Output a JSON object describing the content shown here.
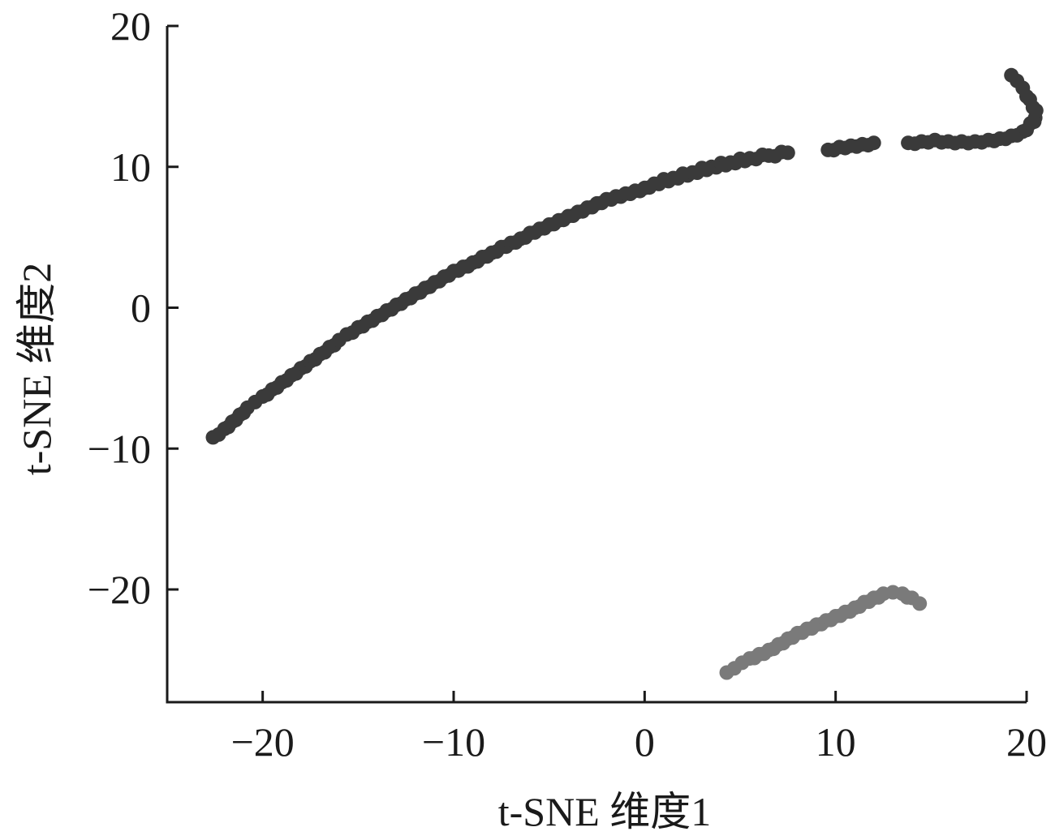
{
  "chart_data": {
    "type": "scatter",
    "title": "",
    "xlabel": "t-SNE 维度1",
    "ylabel": "t-SNE 维度2",
    "xlim": [
      -25,
      20
    ],
    "ylim": [
      -28,
      20
    ],
    "xticks": [
      -20,
      -10,
      0,
      10,
      20
    ],
    "yticks": [
      -20,
      -10,
      0,
      10,
      20
    ],
    "xtick_labels": [
      "−20",
      "−10",
      "0",
      "10",
      "20"
    ],
    "ytick_labels": [
      "−20",
      "−10",
      "0",
      "10",
      "20"
    ],
    "grid": false,
    "legend": "none",
    "series": [
      {
        "color": "#3a3a3a",
        "x": [
          -22.6,
          -22.3,
          -22.0,
          -21.6,
          -21.2,
          -20.8,
          -20.4,
          -20.0,
          -19.5,
          -19.0,
          -18.5,
          -18.0,
          -17.5,
          -17.0,
          -16.5,
          -16.0,
          -15.6,
          -15.0,
          -14.5,
          -14.0,
          -13.5,
          -13.0,
          -12.5,
          -12.0,
          -11.5,
          -11.0,
          -10.5,
          -10.0,
          -9.5,
          -9.0,
          -8.5,
          -8.0,
          -7.5,
          -7.0,
          -6.5,
          -6.0,
          -5.5,
          -5.0,
          -4.5,
          -4.0,
          -3.5,
          -3.0,
          -2.5,
          -2.0,
          -1.5,
          -1.0,
          -0.5,
          0.0,
          0.5,
          1.5,
          2.5,
          3.5,
          4.5,
          5.5,
          6.5,
          7.5,
          9.6,
          10.2,
          10.8,
          11.4,
          12.0,
          13.8,
          14.5,
          15.2,
          15.9,
          16.6,
          17.3,
          18.0,
          18.6,
          19.2,
          19.8,
          20.4,
          20.5,
          20.0,
          19.8,
          19.5,
          19.2
        ],
        "y": [
          -9.2,
          -9.0,
          -8.6,
          -8.1,
          -7.6,
          -7.1,
          -6.7,
          -6.3,
          -5.8,
          -5.3,
          -4.8,
          -4.3,
          -3.8,
          -3.3,
          -2.8,
          -2.3,
          -1.9,
          -1.4,
          -1.0,
          -0.6,
          -0.2,
          0.2,
          0.6,
          1.0,
          1.4,
          1.8,
          2.2,
          2.6,
          2.9,
          3.2,
          3.6,
          3.9,
          4.3,
          4.6,
          4.9,
          5.3,
          5.6,
          5.9,
          6.2,
          6.5,
          6.8,
          7.1,
          7.4,
          7.7,
          7.9,
          8.1,
          8.3,
          8.5,
          8.8,
          9.2,
          9.6,
          10.0,
          10.3,
          10.6,
          10.8,
          11.0,
          11.2,
          11.4,
          11.5,
          11.6,
          11.7,
          11.7,
          11.8,
          11.9,
          11.8,
          11.8,
          11.8,
          11.9,
          12.0,
          12.2,
          12.5,
          13.2,
          14.0,
          15.0,
          15.6,
          16.1,
          16.5
        ]
      },
      {
        "color": "#7a7a7a",
        "x": [
          4.3,
          4.7,
          5.1,
          5.5,
          6.0,
          6.5,
          7.0,
          7.5,
          8.0,
          8.5,
          9.0,
          9.5,
          10.0,
          10.5,
          11.0,
          11.5,
          12.0,
          12.5,
          13.0,
          13.5,
          14.0,
          14.4
        ],
        "y": [
          -25.9,
          -25.6,
          -25.2,
          -24.9,
          -24.6,
          -24.3,
          -23.9,
          -23.5,
          -23.1,
          -22.8,
          -22.5,
          -22.2,
          -21.9,
          -21.6,
          -21.3,
          -20.9,
          -20.6,
          -20.3,
          -20.2,
          -20.3,
          -20.6,
          -21.0
        ]
      }
    ]
  }
}
